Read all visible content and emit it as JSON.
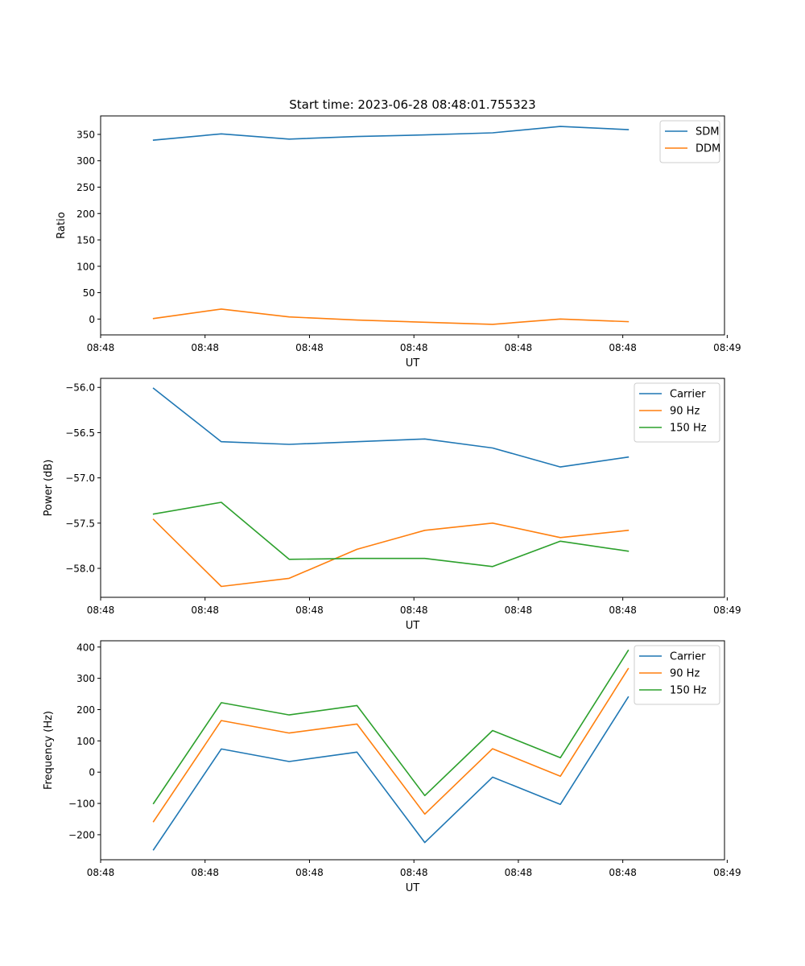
{
  "figure": {
    "title": "Start time: 2023-06-28 08:48:01.755323"
  },
  "chart_data": [
    {
      "type": "line",
      "xlabel": "UT",
      "ylabel": "Ratio",
      "xlim": [
        0,
        9.2
      ],
      "ylim": [
        -30,
        385
      ],
      "x": [
        0.78,
        1.78,
        2.78,
        3.78,
        4.78,
        5.78,
        6.78,
        7.78
      ],
      "xticks": [
        0,
        1.54,
        3.08,
        4.62,
        6.16,
        7.7,
        9.24
      ],
      "xticklabels": [
        "08:48",
        "08:48",
        "08:48",
        "08:48",
        "08:48",
        "08:48",
        "08:49"
      ],
      "yticks": [
        0,
        50,
        100,
        150,
        200,
        250,
        300,
        350
      ],
      "yticklabels": [
        "0",
        "50",
        "100",
        "150",
        "200",
        "250",
        "300",
        "350"
      ],
      "grid": false,
      "legend_position": "top-right",
      "series": [
        {
          "name": "SDM",
          "color": "#1f77b4",
          "values": [
            339,
            351,
            341,
            346,
            349,
            353,
            365,
            359
          ]
        },
        {
          "name": "DDM",
          "color": "#ff7f0e",
          "values": [
            1,
            19,
            4,
            -2,
            -6,
            -10,
            0,
            -5
          ]
        }
      ]
    },
    {
      "type": "line",
      "xlabel": "UT",
      "ylabel": "Power (dB)",
      "xlim": [
        0,
        9.2
      ],
      "ylim": [
        -58.32,
        -55.9
      ],
      "x": [
        0.78,
        1.78,
        2.78,
        3.78,
        4.78,
        5.78,
        6.78,
        7.78
      ],
      "xticks": [
        0,
        1.54,
        3.08,
        4.62,
        6.16,
        7.7,
        9.24
      ],
      "xticklabels": [
        "08:48",
        "08:48",
        "08:48",
        "08:48",
        "08:48",
        "08:48",
        "08:49"
      ],
      "yticks": [
        -58.0,
        -57.5,
        -57.0,
        -56.5,
        -56.0
      ],
      "yticklabels": [
        "−58.0",
        "−57.5",
        "−57.0",
        "−56.5",
        "−56.0"
      ],
      "grid": false,
      "legend_position": "top-right",
      "series": [
        {
          "name": "Carrier",
          "color": "#1f77b4",
          "values": [
            -56.01,
            -56.6,
            -56.63,
            -56.6,
            -56.57,
            -56.67,
            -56.88,
            -56.77
          ]
        },
        {
          "name": "90 Hz",
          "color": "#ff7f0e",
          "values": [
            -57.46,
            -58.2,
            -58.11,
            -57.79,
            -57.58,
            -57.5,
            -57.66,
            -57.58
          ]
        },
        {
          "name": "150 Hz",
          "color": "#2ca02c",
          "values": [
            -57.4,
            -57.27,
            -57.9,
            -57.89,
            -57.89,
            -57.98,
            -57.7,
            -57.81
          ]
        }
      ]
    },
    {
      "type": "line",
      "xlabel": "UT",
      "ylabel": "Frequency (Hz)",
      "xlim": [
        0,
        9.2
      ],
      "ylim": [
        -280,
        420
      ],
      "x": [
        0.78,
        1.78,
        2.78,
        3.78,
        4.78,
        5.78,
        6.78,
        7.78
      ],
      "xticks": [
        0,
        1.54,
        3.08,
        4.62,
        6.16,
        7.7,
        9.24
      ],
      "xticklabels": [
        "08:48",
        "08:48",
        "08:48",
        "08:48",
        "08:48",
        "08:48",
        "08:49"
      ],
      "yticks": [
        -200,
        -100,
        0,
        100,
        200,
        300,
        400
      ],
      "yticklabels": [
        "−200",
        "−100",
        "0",
        "100",
        "200",
        "300",
        "400"
      ],
      "grid": false,
      "legend_position": "top-right",
      "series": [
        {
          "name": "Carrier",
          "color": "#1f77b4",
          "values": [
            -248,
            74,
            34,
            64,
            -225,
            -16,
            -103,
            240
          ]
        },
        {
          "name": "90 Hz",
          "color": "#ff7f0e",
          "values": [
            -158,
            165,
            125,
            154,
            -134,
            75,
            -13,
            331
          ]
        },
        {
          "name": "150 Hz",
          "color": "#2ca02c",
          "values": [
            -100,
            222,
            183,
            213,
            -75,
            133,
            46,
            389
          ]
        }
      ]
    }
  ]
}
